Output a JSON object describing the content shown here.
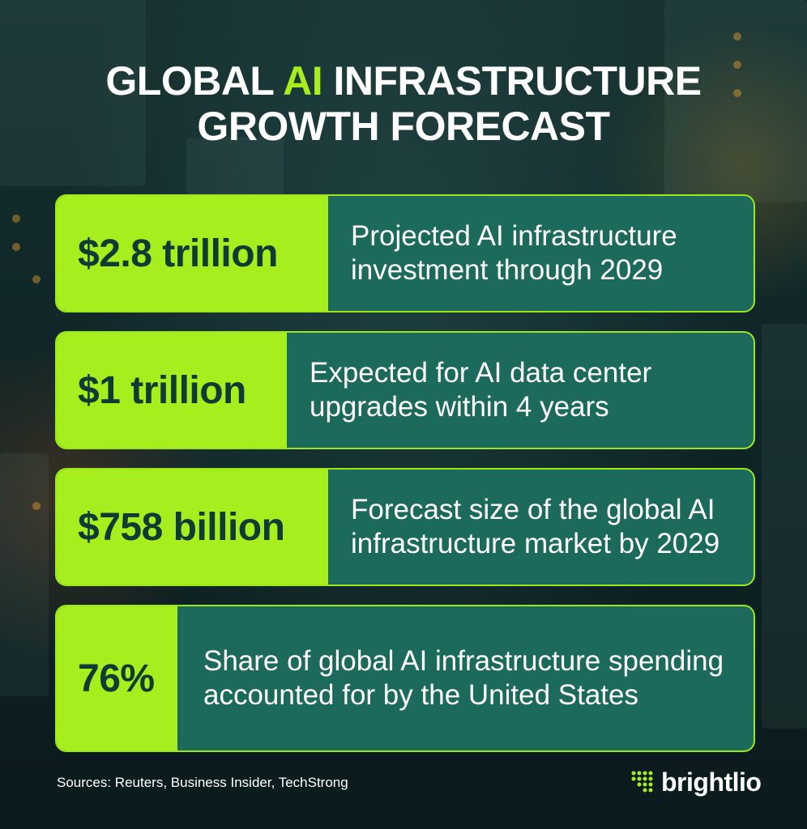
{
  "header": {
    "title_parts": [
      "GLOBAL ",
      "AI",
      " INFRASTRUCTURE GROWTH FORECAST"
    ]
  },
  "stats": [
    {
      "value": "$2.8 trillion",
      "description": "Projected AI infrastructure investment through 2029"
    },
    {
      "value": "$1 trillion",
      "description": "Expected for AI data center upgrades within 4 years"
    },
    {
      "value": "$758 billion",
      "description": "Forecast size of the global AI infrastructure market by 2029"
    },
    {
      "value": "76%",
      "description": "Share of global AI infrastructure spending accounted for by the United States"
    }
  ],
  "footer": {
    "sources": "Sources: Reuters, Business Insider, TechStrong",
    "brand": "brightlio"
  }
}
